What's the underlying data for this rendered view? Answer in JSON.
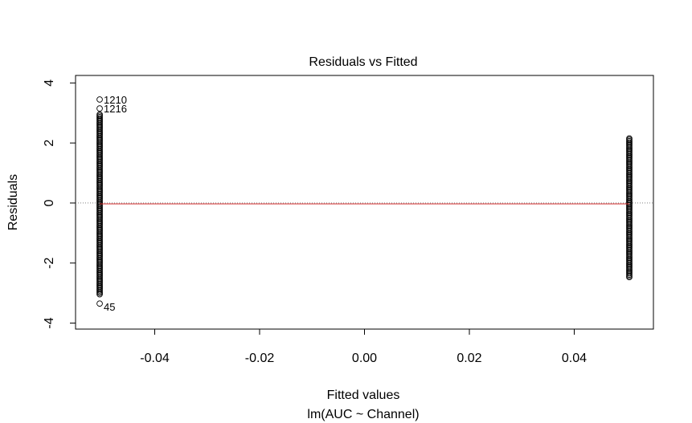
{
  "chart_data": {
    "type": "scatter",
    "title": "Residuals vs Fitted",
    "xlabel": "Fitted values",
    "xlabel_sub": "lm(AUC ~ Channel)",
    "ylabel": "Residuals",
    "xlim": [
      -0.0551,
      0.0551
    ],
    "ylim": [
      -4.2,
      4.25
    ],
    "x_ticks": [
      -0.04,
      -0.02,
      0.0,
      0.02,
      0.04
    ],
    "x_tick_labels": [
      "-0.04",
      "-0.02",
      "0.00",
      "0.02",
      "0.04"
    ],
    "y_ticks": [
      -4,
      -2,
      0,
      2,
      4
    ],
    "y_tick_labels": [
      "-4",
      "-2",
      "0",
      "2",
      "4"
    ],
    "grid": false,
    "reference_line": {
      "y": 0,
      "color": "#808080",
      "style": "dotted"
    },
    "smoother": {
      "color": "#d12b2b",
      "points": [
        [
          -0.0505,
          -0.03
        ],
        [
          0.0,
          -0.03
        ],
        [
          0.0505,
          -0.03
        ]
      ]
    },
    "groups": [
      {
        "x": -0.0505,
        "y_min": -3.05,
        "y_max": 2.95
      },
      {
        "x": 0.0505,
        "y_min": -2.5,
        "y_max": 2.15
      }
    ],
    "outliers": [
      {
        "x": -0.0505,
        "y": 3.45,
        "label": "1210"
      },
      {
        "x": -0.0505,
        "y": 3.15,
        "label": "1216"
      },
      {
        "x": -0.0505,
        "y": -3.35,
        "label": "45"
      }
    ]
  }
}
